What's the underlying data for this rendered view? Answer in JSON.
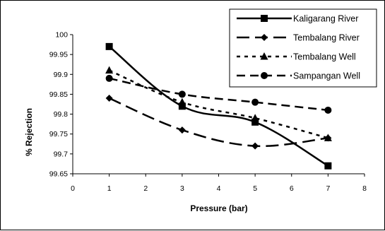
{
  "chart_data": {
    "type": "line",
    "xlabel": "Pressure (bar)",
    "ylabel": "% Rejection",
    "xlim": [
      0,
      8
    ],
    "ylim": [
      99.65,
      100
    ],
    "x_ticks": [
      "0",
      "1",
      "2",
      "3",
      "4",
      "5",
      "6",
      "7",
      "8"
    ],
    "y_ticks": [
      "99.65",
      "99.7",
      "99.75",
      "99.8",
      "99.85",
      "99.9",
      "99.95",
      "100"
    ],
    "grid": false,
    "legend_position": "top-right",
    "series": [
      {
        "name": "Kaligarang River",
        "marker": "square",
        "line_style": "solid",
        "x": [
          1,
          3,
          5,
          7
        ],
        "y": [
          99.97,
          99.82,
          99.78,
          99.67
        ]
      },
      {
        "name": "Tembalang River",
        "marker": "diamond",
        "line_style": "long-dash",
        "x": [
          1,
          3,
          5,
          7
        ],
        "y": [
          99.84,
          99.76,
          99.72,
          99.74
        ]
      },
      {
        "name": "Tembalang Well",
        "marker": "triangle",
        "line_style": "short-dash",
        "x": [
          1,
          3,
          5,
          7
        ],
        "y": [
          99.91,
          99.83,
          99.79,
          99.74
        ]
      },
      {
        "name": "Sampangan Well",
        "marker": "circle",
        "line_style": "dash",
        "x": [
          1,
          3,
          5,
          7
        ],
        "y": [
          99.89,
          99.85,
          99.83,
          99.81
        ]
      }
    ]
  }
}
